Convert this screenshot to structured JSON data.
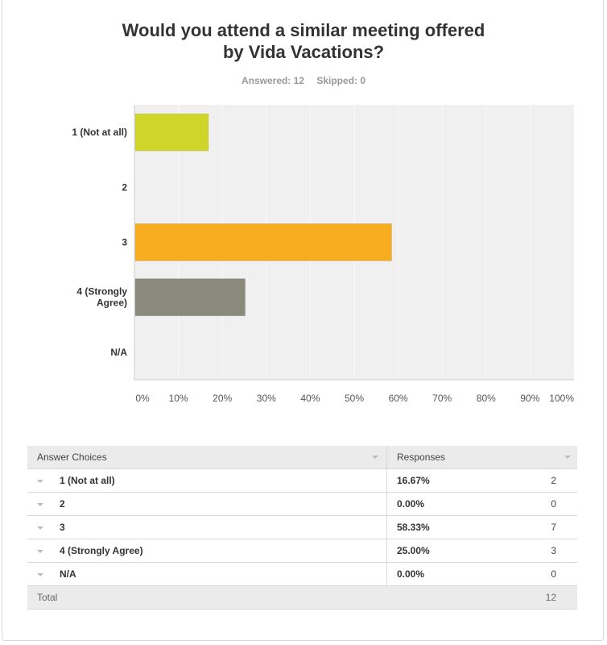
{
  "title_line1": "Would you attend a similar meeting offered",
  "title_line2": "by Vida Vacations?",
  "answered": "Answered: 12",
  "skipped": "Skipped: 0",
  "chart_data": {
    "type": "bar",
    "orientation": "horizontal",
    "categories": [
      "1 (Not at all)",
      "2",
      "3",
      "4 (Strongly Agree)",
      "N/A"
    ],
    "category_label_lines": [
      [
        "1 (Not at all)"
      ],
      [
        "2"
      ],
      [
        "3"
      ],
      [
        "4 (Strongly",
        "Agree)"
      ],
      [
        "N/A"
      ]
    ],
    "values": [
      16.67,
      0,
      58.33,
      25.0,
      0
    ],
    "colors": [
      "#d0d629",
      "#5bbbd6",
      "#f6ae20",
      "#8a8b7c",
      "#b2c7d6"
    ],
    "xlim": [
      0,
      100
    ],
    "xticks": [
      "0%",
      "10%",
      "20%",
      "30%",
      "40%",
      "50%",
      "60%",
      "70%",
      "80%",
      "90%",
      "100%"
    ],
    "grid": true
  },
  "table": {
    "headers": [
      "Answer Choices",
      "Responses"
    ],
    "rows": [
      {
        "choice": "1 (Not at all)",
        "percent": "16.67%",
        "count": "2"
      },
      {
        "choice": "2",
        "percent": "0.00%",
        "count": "0"
      },
      {
        "choice": "3",
        "percent": "58.33%",
        "count": "7"
      },
      {
        "choice": "4 (Strongly Agree)",
        "percent": "25.00%",
        "count": "3"
      },
      {
        "choice": "N/A",
        "percent": "0.00%",
        "count": "0"
      }
    ],
    "total_label": "Total",
    "total_count": "12"
  }
}
